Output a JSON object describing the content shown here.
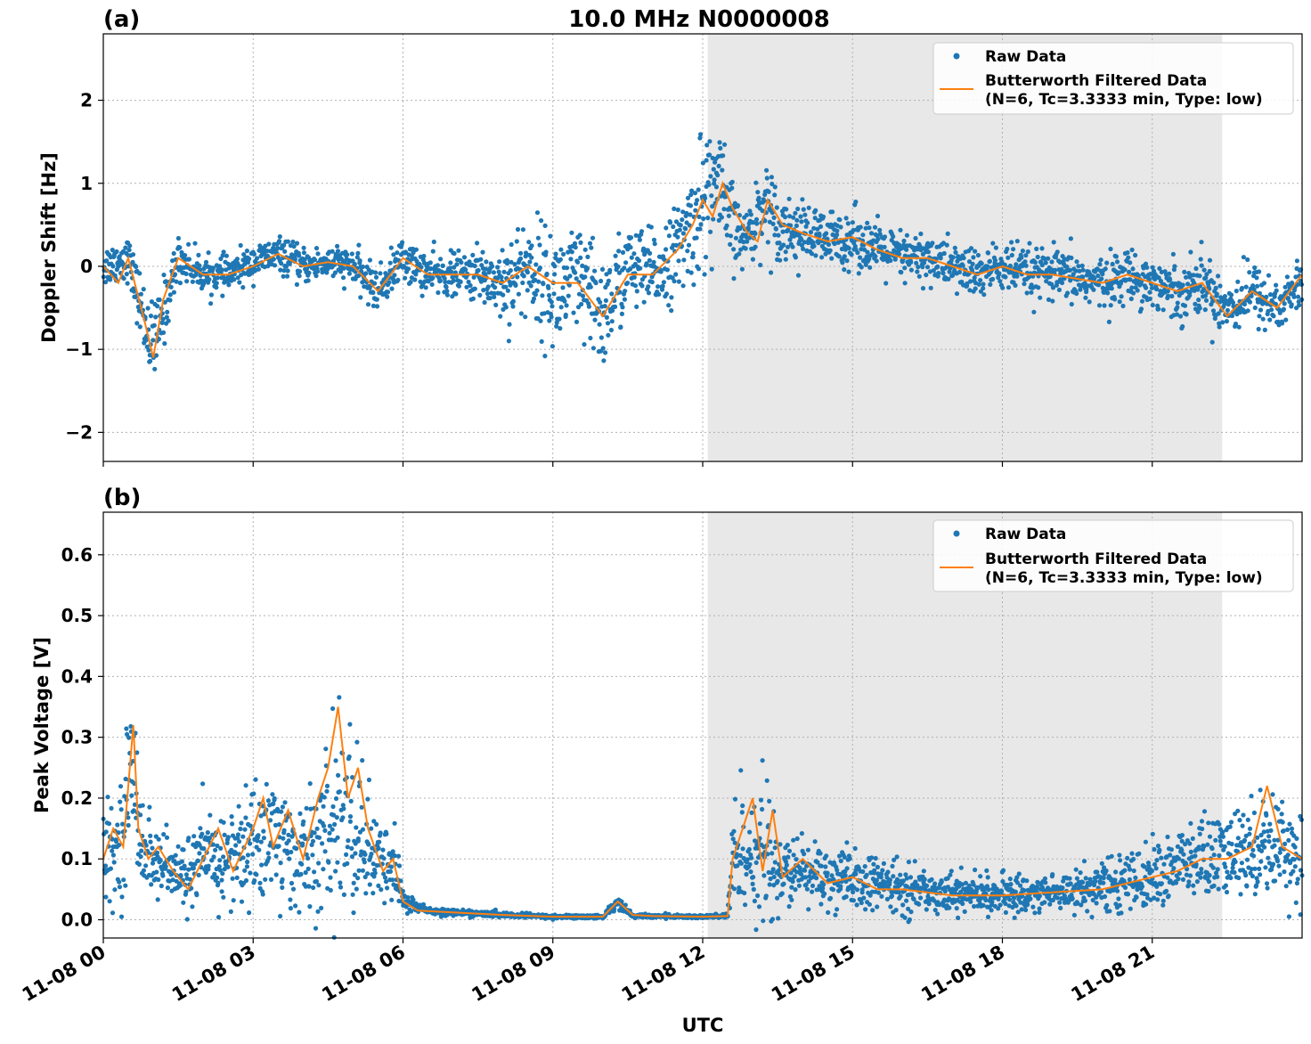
{
  "figure": {
    "title": "10.0 MHz N0000008",
    "xlabel": "UTC",
    "shaded_region": {
      "start_hour": 12.1,
      "end_hour": 22.4,
      "color": "#e8e8e8"
    },
    "x_ticks": [
      {
        "hour": 0,
        "label": "11-08 00"
      },
      {
        "hour": 3,
        "label": "11-08 03"
      },
      {
        "hour": 6,
        "label": "11-08 06"
      },
      {
        "hour": 9,
        "label": "11-08 09"
      },
      {
        "hour": 12,
        "label": "11-08 12"
      },
      {
        "hour": 15,
        "label": "11-08 15"
      },
      {
        "hour": 18,
        "label": "11-08 18"
      },
      {
        "hour": 21,
        "label": "11-08 21"
      }
    ],
    "colors": {
      "raw": "#1f77b4",
      "filtered": "#ff7f0e",
      "grid": "#b0b0b0"
    }
  },
  "chart_data": [
    {
      "type": "scatter",
      "panel_label": "(a)",
      "ylabel": "Doppler Shift [Hz]",
      "xlim_hours": [
        0,
        24
      ],
      "ylim": [
        -2.35,
        2.8
      ],
      "y_ticks": [
        {
          "value": 2,
          "label": "2"
        },
        {
          "value": 1,
          "label": "1"
        },
        {
          "value": 0,
          "label": "0"
        },
        {
          "value": -1,
          "label": "−1"
        },
        {
          "value": -2,
          "label": "−2"
        }
      ],
      "legend": {
        "position": "top-right",
        "entries": [
          "Raw Data",
          "Butterworth Filtered Data",
          "(N=6, Tc=3.3333 min, Type: low)"
        ]
      },
      "series": [
        {
          "name": "Raw Data",
          "x_hours": [
            0,
            0.5,
            0.8,
            1.0,
            1.5,
            2,
            2.5,
            3,
            3.5,
            4,
            4.5,
            5,
            5.5,
            6,
            6.5,
            7,
            7.5,
            8,
            8.5,
            9,
            9.5,
            10,
            10.5,
            11,
            11.5,
            11.8,
            12,
            12.3,
            12.5,
            12.8,
            13,
            13.3,
            13.5,
            14,
            14.5,
            15,
            15.5,
            16,
            16.5,
            17,
            17.5,
            18,
            18.5,
            19,
            19.5,
            20,
            20.5,
            21,
            21.5,
            22,
            22.5,
            23,
            23.5,
            24
          ],
          "center": [
            0.0,
            0.1,
            -0.6,
            -1.0,
            0.1,
            -0.1,
            -0.1,
            0.05,
            0.15,
            0.0,
            0.05,
            0.0,
            -0.3,
            0.1,
            -0.1,
            -0.1,
            -0.1,
            -0.2,
            0.0,
            -0.3,
            -0.2,
            -0.6,
            0.0,
            -0.1,
            0.2,
            0.5,
            0.8,
            1.0,
            0.6,
            0.3,
            0.5,
            0.8,
            0.5,
            0.4,
            0.3,
            0.35,
            0.2,
            0.1,
            0.1,
            0.0,
            -0.1,
            0.0,
            -0.1,
            -0.1,
            -0.15,
            -0.2,
            -0.1,
            -0.2,
            -0.3,
            -0.2,
            -0.5,
            -0.3,
            -0.5,
            -0.2
          ],
          "spread": [
            0.25,
            0.25,
            0.4,
            0.5,
            0.25,
            0.2,
            0.2,
            0.2,
            0.2,
            0.2,
            0.2,
            0.2,
            0.25,
            0.25,
            0.25,
            0.25,
            0.3,
            0.5,
            0.6,
            0.7,
            0.7,
            0.7,
            0.5,
            0.5,
            0.5,
            0.7,
            0.8,
            0.8,
            0.6,
            0.3,
            0.4,
            0.5,
            0.4,
            0.35,
            0.35,
            0.35,
            0.3,
            0.3,
            0.3,
            0.3,
            0.3,
            0.3,
            0.3,
            0.3,
            0.3,
            0.3,
            0.3,
            0.3,
            0.35,
            0.35,
            0.35,
            0.35,
            0.35,
            0.3
          ]
        },
        {
          "name": "Butterworth Filtered Data",
          "x_hours": [
            0,
            0.3,
            0.5,
            0.8,
            1.0,
            1.2,
            1.5,
            2,
            2.5,
            3,
            3.5,
            4,
            4.5,
            5,
            5.5,
            6,
            6.5,
            7,
            7.5,
            8,
            8.5,
            9,
            9.5,
            10,
            10.5,
            11,
            11.5,
            11.8,
            12,
            12.2,
            12.4,
            12.6,
            12.9,
            13.1,
            13.3,
            13.6,
            14,
            14.5,
            15,
            15.5,
            16,
            16.5,
            17,
            17.5,
            18,
            18.5,
            19,
            19.5,
            20,
            20.5,
            21,
            21.5,
            22,
            22.5,
            23,
            23.5,
            24
          ],
          "values": [
            0.0,
            -0.2,
            0.1,
            -0.6,
            -1.1,
            -0.4,
            0.1,
            -0.1,
            -0.1,
            0.0,
            0.15,
            0.0,
            0.05,
            0.0,
            -0.3,
            0.1,
            -0.1,
            -0.1,
            -0.1,
            -0.2,
            0.0,
            -0.2,
            -0.2,
            -0.6,
            -0.1,
            -0.1,
            0.2,
            0.5,
            0.8,
            0.6,
            1.0,
            0.7,
            0.4,
            0.3,
            0.8,
            0.5,
            0.4,
            0.3,
            0.35,
            0.2,
            0.1,
            0.1,
            0.0,
            -0.1,
            0.0,
            -0.1,
            -0.1,
            -0.15,
            -0.2,
            -0.1,
            -0.2,
            -0.3,
            -0.2,
            -0.6,
            -0.3,
            -0.5,
            -0.1
          ]
        }
      ]
    },
    {
      "type": "scatter",
      "panel_label": "(b)",
      "ylabel": "Peak Voltage [V]",
      "xlim_hours": [
        0,
        24
      ],
      "ylim": [
        -0.03,
        0.67
      ],
      "y_ticks": [
        {
          "value": 0.6,
          "label": "0.6"
        },
        {
          "value": 0.5,
          "label": "0.5"
        },
        {
          "value": 0.4,
          "label": "0.4"
        },
        {
          "value": 0.3,
          "label": "0.3"
        },
        {
          "value": 0.2,
          "label": "0.2"
        },
        {
          "value": 0.1,
          "label": "0.1"
        },
        {
          "value": 0.0,
          "label": "0.0"
        }
      ],
      "legend": {
        "position": "top-right",
        "entries": [
          "Raw Data",
          "Butterworth Filtered Data",
          "(N=6, Tc=3.3333 min, Type: low)"
        ]
      },
      "series": [
        {
          "name": "Raw Data",
          "x_hours": [
            0,
            0.3,
            0.6,
            0.8,
            1.0,
            1.5,
            2,
            2.5,
            3,
            3.3,
            3.6,
            4,
            4.4,
            4.7,
            5,
            5.3,
            5.6,
            5.8,
            6,
            6.5,
            7,
            8,
            9,
            10,
            10.3,
            10.6,
            11,
            12,
            12.5,
            12.6,
            12.9,
            13.3,
            13.6,
            14,
            14.5,
            15,
            15.5,
            16,
            17,
            18,
            19,
            20,
            21,
            21.5,
            22,
            22.5,
            23,
            23.5,
            24
          ],
          "center": [
            0.1,
            0.12,
            0.25,
            0.12,
            0.1,
            0.07,
            0.1,
            0.1,
            0.12,
            0.15,
            0.12,
            0.1,
            0.12,
            0.18,
            0.15,
            0.12,
            0.08,
            0.1,
            0.03,
            0.015,
            0.012,
            0.008,
            0.005,
            0.005,
            0.03,
            0.006,
            0.006,
            0.005,
            0.006,
            0.1,
            0.12,
            0.1,
            0.07,
            0.08,
            0.07,
            0.06,
            0.06,
            0.05,
            0.045,
            0.04,
            0.045,
            0.055,
            0.07,
            0.09,
            0.1,
            0.1,
            0.12,
            0.13,
            0.1
          ],
          "spread": [
            0.07,
            0.08,
            0.15,
            0.07,
            0.06,
            0.05,
            0.07,
            0.08,
            0.1,
            0.12,
            0.1,
            0.08,
            0.12,
            0.18,
            0.15,
            0.1,
            0.06,
            0.07,
            0.02,
            0.006,
            0.005,
            0.004,
            0.003,
            0.003,
            0.01,
            0.003,
            0.003,
            0.003,
            0.004,
            0.1,
            0.12,
            0.1,
            0.05,
            0.06,
            0.05,
            0.05,
            0.04,
            0.04,
            0.03,
            0.03,
            0.03,
            0.04,
            0.05,
            0.06,
            0.07,
            0.07,
            0.08,
            0.08,
            0.07
          ]
        },
        {
          "name": "Butterworth Filtered Data",
          "x_hours": [
            0,
            0.2,
            0.4,
            0.6,
            0.7,
            0.9,
            1.1,
            1.4,
            1.7,
            2,
            2.3,
            2.6,
            3,
            3.2,
            3.4,
            3.7,
            4,
            4.3,
            4.5,
            4.7,
            4.9,
            5.1,
            5.3,
            5.6,
            5.8,
            6,
            6.3,
            7,
            8,
            9,
            10,
            10.3,
            10.6,
            11,
            12,
            12.5,
            12.6,
            12.8,
            13,
            13.2,
            13.4,
            13.6,
            14,
            14.5,
            15,
            15.5,
            16,
            17,
            18,
            19,
            20,
            21,
            21.5,
            22,
            22.5,
            23,
            23.3,
            23.6,
            24
          ],
          "values": [
            0.1,
            0.15,
            0.12,
            0.32,
            0.15,
            0.1,
            0.12,
            0.08,
            0.05,
            0.1,
            0.15,
            0.08,
            0.15,
            0.2,
            0.12,
            0.18,
            0.1,
            0.2,
            0.25,
            0.35,
            0.2,
            0.25,
            0.15,
            0.08,
            0.1,
            0.03,
            0.015,
            0.012,
            0.008,
            0.005,
            0.005,
            0.03,
            0.008,
            0.006,
            0.005,
            0.006,
            0.1,
            0.15,
            0.2,
            0.08,
            0.18,
            0.07,
            0.1,
            0.06,
            0.07,
            0.05,
            0.05,
            0.04,
            0.04,
            0.045,
            0.05,
            0.07,
            0.08,
            0.1,
            0.1,
            0.12,
            0.22,
            0.12,
            0.1
          ]
        }
      ]
    }
  ]
}
